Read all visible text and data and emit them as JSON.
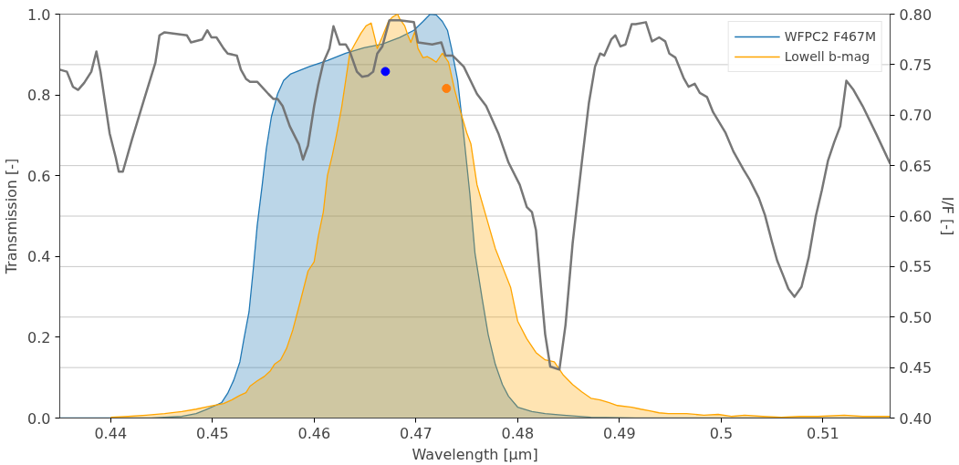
{
  "chart_data": {
    "type": "area",
    "xlabel": "Wavelength [μm]",
    "ylabel": "Transmission [-]",
    "y2label": "I/F [-]",
    "xlim": [
      0.435,
      0.5166
    ],
    "xticks": [
      0.44,
      0.45,
      0.46,
      0.47,
      0.48,
      0.49,
      0.5,
      0.51
    ],
    "ylim": [
      0,
      1.0
    ],
    "yticks": [
      {
        "value": 0,
        "label": "0.0"
      },
      0.2,
      0.4,
      0.6,
      0.8,
      {
        "value": 1.0,
        "label": "1.0"
      }
    ],
    "y2lim": [
      0.4,
      0.8
    ],
    "y2ticks": [
      {
        "value": 0.4,
        "label": "0.40"
      },
      0.45,
      {
        "value": 0.5,
        "label": "0.50"
      },
      0.55,
      {
        "value": 0.6,
        "label": "0.60"
      },
      0.65,
      {
        "value": 0.7,
        "label": "0.70"
      },
      0.75,
      {
        "value": 0.8,
        "label": "0.80"
      }
    ],
    "grid": "y",
    "legend": "top right",
    "series": [
      {
        "name": "WFPC2 F467M",
        "color": "#1f77b4",
        "x": [
          0.435,
          0.444,
          0.447,
          0.4484,
          0.4493,
          0.4503,
          0.4509,
          0.4515,
          0.4521,
          0.4527,
          0.4531,
          0.4536,
          0.454,
          0.4544,
          0.4549,
          0.4553,
          0.4558,
          0.4564,
          0.457,
          0.4577,
          0.4595,
          0.4613,
          0.4631,
          0.4649,
          0.4667,
          0.4684,
          0.4698,
          0.4707,
          0.4714,
          0.472,
          0.4726,
          0.4731,
          0.4735,
          0.4741,
          0.4747,
          0.4753,
          0.4758,
          0.4765,
          0.4771,
          0.4778,
          0.4785,
          0.4791,
          0.48,
          0.4814,
          0.4827,
          0.4845,
          0.4872,
          0.4916,
          0.5166
        ],
        "values": [
          0,
          0,
          0.004,
          0.011,
          0.02,
          0.031,
          0.038,
          0.061,
          0.094,
          0.139,
          0.196,
          0.263,
          0.364,
          0.476,
          0.578,
          0.667,
          0.746,
          0.802,
          0.836,
          0.852,
          0.87,
          0.885,
          0.903,
          0.917,
          0.926,
          0.942,
          0.96,
          0.982,
          1.0,
          0.998,
          0.982,
          0.96,
          0.915,
          0.836,
          0.701,
          0.555,
          0.409,
          0.297,
          0.207,
          0.133,
          0.083,
          0.054,
          0.027,
          0.016,
          0.011,
          0.007,
          0.002,
          0,
          0
        ]
      },
      {
        "name": "Lowell b-mag",
        "color": "#ffa500",
        "x": [
          0.44,
          0.4417,
          0.4435,
          0.4453,
          0.447,
          0.4484,
          0.4497,
          0.4511,
          0.4519,
          0.4527,
          0.4533,
          0.4537,
          0.4544,
          0.4551,
          0.4557,
          0.4561,
          0.4567,
          0.4573,
          0.4579,
          0.4586,
          0.4594,
          0.46,
          0.4604,
          0.4609,
          0.4613,
          0.4618,
          0.4622,
          0.4627,
          0.4631,
          0.4635,
          0.464,
          0.4646,
          0.4651,
          0.4656,
          0.466,
          0.4662,
          0.4667,
          0.4673,
          0.4677,
          0.4682,
          0.4684,
          0.4689,
          0.4692,
          0.4695,
          0.4699,
          0.4702,
          0.4707,
          0.4711,
          0.4716,
          0.472,
          0.4726,
          0.4732,
          0.4738,
          0.4744,
          0.475,
          0.4754,
          0.476,
          0.4769,
          0.4778,
          0.4785,
          0.4793,
          0.48,
          0.4809,
          0.4818,
          0.4827,
          0.4836,
          0.4845,
          0.4854,
          0.4863,
          0.4872,
          0.4881,
          0.489,
          0.4898,
          0.4912,
          0.4921,
          0.493,
          0.4939,
          0.4948,
          0.4966,
          0.4983,
          0.4997,
          0.501,
          0.5023,
          0.5041,
          0.5059,
          0.5077,
          0.5095,
          0.5121,
          0.5139,
          0.5166
        ],
        "values": [
          0.002,
          0.004,
          0.007,
          0.011,
          0.016,
          0.022,
          0.029,
          0.036,
          0.045,
          0.056,
          0.063,
          0.079,
          0.092,
          0.103,
          0.117,
          0.133,
          0.144,
          0.173,
          0.218,
          0.285,
          0.364,
          0.387,
          0.449,
          0.51,
          0.6,
          0.652,
          0.701,
          0.769,
          0.836,
          0.903,
          0.926,
          0.953,
          0.971,
          0.978,
          0.937,
          0.915,
          0.944,
          0.982,
          0.993,
          1.0,
          0.989,
          0.971,
          0.948,
          0.93,
          0.957,
          0.915,
          0.892,
          0.895,
          0.888,
          0.881,
          0.903,
          0.881,
          0.813,
          0.757,
          0.706,
          0.679,
          0.578,
          0.499,
          0.42,
          0.375,
          0.324,
          0.24,
          0.196,
          0.162,
          0.144,
          0.139,
          0.106,
          0.083,
          0.065,
          0.049,
          0.045,
          0.038,
          0.031,
          0.027,
          0.022,
          0.018,
          0.013,
          0.011,
          0.011,
          0.007,
          0.009,
          0.004,
          0.007,
          0.004,
          0.002,
          0.004,
          0.004,
          0.007,
          0.004,
          0.004
        ]
      },
      {
        "type": "line",
        "axis": "y2",
        "color": "#707070",
        "x": [
          0.435,
          0.4357,
          0.4363,
          0.4368,
          0.4374,
          0.4381,
          0.4386,
          0.439,
          0.4399,
          0.4405,
          0.4408,
          0.4412,
          0.4421,
          0.4433,
          0.4444,
          0.4448,
          0.4453,
          0.4475,
          0.4479,
          0.449,
          0.4495,
          0.4499,
          0.4504,
          0.4511,
          0.4515,
          0.4524,
          0.4528,
          0.4533,
          0.4537,
          0.4544,
          0.4555,
          0.456,
          0.4564,
          0.4569,
          0.4576,
          0.4585,
          0.4589,
          0.4594,
          0.46,
          0.4604,
          0.4609,
          0.4615,
          0.4619,
          0.4625,
          0.4631,
          0.4635,
          0.4642,
          0.4647,
          0.4653,
          0.4658,
          0.4662,
          0.4667,
          0.4674,
          0.4684,
          0.4698,
          0.4702,
          0.4716,
          0.4725,
          0.4729,
          0.4736,
          0.4747,
          0.476,
          0.4769,
          0.4781,
          0.4791,
          0.4802,
          0.4809,
          0.4814,
          0.4818,
          0.4823,
          0.4827,
          0.4832,
          0.4841,
          0.4847,
          0.4854,
          0.4863,
          0.487,
          0.4876,
          0.4881,
          0.4885,
          0.4892,
          0.4896,
          0.4901,
          0.4906,
          0.4912,
          0.4916,
          0.4926,
          0.4932,
          0.4939,
          0.4945,
          0.4949,
          0.4955,
          0.4963,
          0.4968,
          0.4974,
          0.4979,
          0.4986,
          0.4992,
          0.5004,
          0.5012,
          0.5022,
          0.5028,
          0.5037,
          0.5043,
          0.505,
          0.5055,
          0.5061,
          0.5066,
          0.5072,
          0.5079,
          0.5086,
          0.5093,
          0.5099,
          0.5105,
          0.5111,
          0.5117,
          0.5123,
          0.513,
          0.5139,
          0.5153,
          0.5166
        ],
        "values": [
          0.745,
          0.743,
          0.728,
          0.725,
          0.732,
          0.743,
          0.763,
          0.743,
          0.682,
          0.658,
          0.644,
          0.644,
          0.676,
          0.716,
          0.752,
          0.779,
          0.782,
          0.779,
          0.772,
          0.775,
          0.784,
          0.777,
          0.777,
          0.766,
          0.761,
          0.759,
          0.745,
          0.736,
          0.733,
          0.733,
          0.721,
          0.716,
          0.716,
          0.709,
          0.689,
          0.671,
          0.656,
          0.67,
          0.709,
          0.73,
          0.752,
          0.766,
          0.788,
          0.77,
          0.77,
          0.763,
          0.743,
          0.738,
          0.739,
          0.743,
          0.761,
          0.768,
          0.794,
          0.794,
          0.792,
          0.772,
          0.77,
          0.772,
          0.759,
          0.759,
          0.748,
          0.721,
          0.709,
          0.682,
          0.653,
          0.631,
          0.609,
          0.604,
          0.586,
          0.528,
          0.483,
          0.451,
          0.448,
          0.492,
          0.573,
          0.653,
          0.712,
          0.748,
          0.761,
          0.759,
          0.775,
          0.779,
          0.768,
          0.77,
          0.79,
          0.79,
          0.792,
          0.773,
          0.777,
          0.773,
          0.761,
          0.757,
          0.737,
          0.728,
          0.731,
          0.722,
          0.718,
          0.703,
          0.683,
          0.664,
          0.646,
          0.636,
          0.618,
          0.601,
          0.574,
          0.556,
          0.541,
          0.528,
          0.52,
          0.53,
          0.559,
          0.6,
          0.626,
          0.655,
          0.673,
          0.689,
          0.734,
          0.725,
          0.709,
          0.68,
          0.652
        ]
      },
      {
        "type": "scatter",
        "color": "#0000ff",
        "x": [
          0.467
        ],
        "values": [
          0.858
        ]
      },
      {
        "type": "scatter",
        "color": "#ff7f0e",
        "x": [
          0.473
        ],
        "values": [
          0.816
        ]
      }
    ]
  }
}
